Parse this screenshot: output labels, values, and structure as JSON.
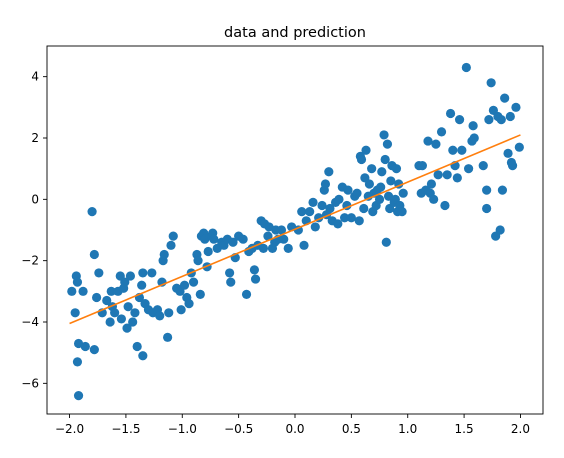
{
  "chart_data": {
    "type": "scatter",
    "title": "data and prediction",
    "xlabel": "",
    "ylabel": "",
    "xlim": [
      -2.2,
      2.2
    ],
    "ylim": [
      -7,
      5
    ],
    "x_ticks": [
      -2.0,
      -1.5,
      -1.0,
      -0.5,
      0.0,
      0.5,
      1.0,
      1.5,
      2.0
    ],
    "x_tick_labels": [
      "−2.0",
      "−1.5",
      "−1.0",
      "−0.5",
      "0.0",
      "0.5",
      "1.0",
      "1.5",
      "2.0"
    ],
    "y_ticks": [
      -6,
      -4,
      -2,
      0,
      2,
      4
    ],
    "y_tick_labels": [
      "−6",
      "−4",
      "−2",
      "0",
      "2",
      "4"
    ],
    "grid": false,
    "colors": {
      "points": "#1f77b4",
      "line": "#ff7f0e"
    },
    "series": [
      {
        "kind": "scatter",
        "points": [
          [
            -1.98,
            -3.0
          ],
          [
            -1.95,
            -3.7
          ],
          [
            -1.94,
            -2.5
          ],
          [
            -1.93,
            -2.7
          ],
          [
            -1.93,
            -5.3
          ],
          [
            -1.92,
            -4.7
          ],
          [
            -1.92,
            -6.4
          ],
          [
            -1.88,
            -3.0
          ],
          [
            -1.86,
            -4.8
          ],
          [
            -1.8,
            -0.4
          ],
          [
            -1.78,
            -1.8
          ],
          [
            -1.78,
            -4.9
          ],
          [
            -1.76,
            -3.2
          ],
          [
            -1.74,
            -2.4
          ],
          [
            -1.71,
            -3.7
          ],
          [
            -1.67,
            -3.3
          ],
          [
            -1.64,
            -4.0
          ],
          [
            -1.63,
            -3.0
          ],
          [
            -1.62,
            -3.5
          ],
          [
            -1.6,
            -3.7
          ],
          [
            -1.57,
            -3.0
          ],
          [
            -1.55,
            -2.5
          ],
          [
            -1.54,
            -3.9
          ],
          [
            -1.52,
            -2.9
          ],
          [
            -1.51,
            -2.7
          ],
          [
            -1.49,
            -4.2
          ],
          [
            -1.48,
            -3.5
          ],
          [
            -1.46,
            -2.5
          ],
          [
            -1.44,
            -4.0
          ],
          [
            -1.42,
            -3.7
          ],
          [
            -1.4,
            -4.8
          ],
          [
            -1.38,
            -3.2
          ],
          [
            -1.36,
            -2.8
          ],
          [
            -1.35,
            -5.1
          ],
          [
            -1.35,
            -2.4
          ],
          [
            -1.33,
            -3.4
          ],
          [
            -1.3,
            -3.6
          ],
          [
            -1.27,
            -2.4
          ],
          [
            -1.26,
            -3.7
          ],
          [
            -1.22,
            -3.6
          ],
          [
            -1.2,
            -3.8
          ],
          [
            -1.18,
            -2.7
          ],
          [
            -1.17,
            -2.0
          ],
          [
            -1.16,
            -1.8
          ],
          [
            -1.13,
            -4.5
          ],
          [
            -1.12,
            -3.7
          ],
          [
            -1.1,
            -1.5
          ],
          [
            -1.08,
            -1.2
          ],
          [
            -1.05,
            -2.9
          ],
          [
            -1.02,
            -3.0
          ],
          [
            -1.01,
            -3.6
          ],
          [
            -0.98,
            -2.8
          ],
          [
            -0.96,
            -3.2
          ],
          [
            -0.94,
            -3.4
          ],
          [
            -0.92,
            -2.4
          ],
          [
            -0.9,
            -2.7
          ],
          [
            -0.87,
            -1.8
          ],
          [
            -0.86,
            -2.0
          ],
          [
            -0.84,
            -3.1
          ],
          [
            -0.83,
            -1.2
          ],
          [
            -0.81,
            -1.1
          ],
          [
            -0.8,
            -1.3
          ],
          [
            -0.78,
            -2.2
          ],
          [
            -0.77,
            -1.7
          ],
          [
            -0.74,
            -1.2
          ],
          [
            -0.73,
            -1.1
          ],
          [
            -0.72,
            -1.3
          ],
          [
            -0.69,
            -1.6
          ],
          [
            -0.65,
            -1.4
          ],
          [
            -0.63,
            -1.5
          ],
          [
            -0.6,
            -1.3
          ],
          [
            -0.58,
            -2.4
          ],
          [
            -0.57,
            -2.7
          ],
          [
            -0.55,
            -1.4
          ],
          [
            -0.53,
            -1.9
          ],
          [
            -0.5,
            -1.2
          ],
          [
            -0.46,
            -1.3
          ],
          [
            -0.43,
            -3.1
          ],
          [
            -0.41,
            -1.7
          ],
          [
            -0.38,
            -1.6
          ],
          [
            -0.36,
            -2.3
          ],
          [
            -0.35,
            -2.6
          ],
          [
            -0.33,
            -1.5
          ],
          [
            -0.3,
            -0.7
          ],
          [
            -0.28,
            -1.6
          ],
          [
            -0.27,
            -0.8
          ],
          [
            -0.24,
            -1.2
          ],
          [
            -0.23,
            -0.9
          ],
          [
            -0.2,
            -1.6
          ],
          [
            -0.18,
            -1.4
          ],
          [
            -0.17,
            -1.0
          ],
          [
            -0.15,
            -1.3
          ],
          [
            -0.12,
            -1.0
          ],
          [
            -0.1,
            -1.3
          ],
          [
            -0.06,
            -1.6
          ],
          [
            -0.03,
            -0.9
          ],
          [
            0.03,
            -1.0
          ],
          [
            0.06,
            -0.4
          ],
          [
            0.08,
            -1.5
          ],
          [
            0.1,
            -0.7
          ],
          [
            0.13,
            -0.4
          ],
          [
            0.16,
            -0.1
          ],
          [
            0.18,
            -0.9
          ],
          [
            0.21,
            -0.6
          ],
          [
            0.24,
            -0.2
          ],
          [
            0.26,
            0.3
          ],
          [
            0.27,
            0.5
          ],
          [
            0.28,
            -0.5
          ],
          [
            0.3,
            0.9
          ],
          [
            0.31,
            -0.3
          ],
          [
            0.33,
            -0.7
          ],
          [
            0.36,
            -0.1
          ],
          [
            0.38,
            -0.8
          ],
          [
            0.39,
            0.0
          ],
          [
            0.42,
            0.4
          ],
          [
            0.44,
            -0.6
          ],
          [
            0.46,
            -0.2
          ],
          [
            0.47,
            0.3
          ],
          [
            0.5,
            -0.6
          ],
          [
            0.53,
            0.1
          ],
          [
            0.55,
            0.2
          ],
          [
            0.57,
            -0.7
          ],
          [
            0.58,
            1.4
          ],
          [
            0.59,
            1.3
          ],
          [
            0.61,
            -0.3
          ],
          [
            0.62,
            0.7
          ],
          [
            0.63,
            1.6
          ],
          [
            0.65,
            0.1
          ],
          [
            0.66,
            0.5
          ],
          [
            0.68,
            1.0
          ],
          [
            0.69,
            -0.4
          ],
          [
            0.7,
            0.2
          ],
          [
            0.72,
            -0.2
          ],
          [
            0.73,
            0.3
          ],
          [
            0.75,
            0.0
          ],
          [
            0.76,
            0.4
          ],
          [
            0.77,
            0.9
          ],
          [
            0.79,
            2.1
          ],
          [
            0.8,
            1.3
          ],
          [
            0.81,
            -1.4
          ],
          [
            0.82,
            1.8
          ],
          [
            0.83,
            0.1
          ],
          [
            0.84,
            -0.3
          ],
          [
            0.85,
            0.6
          ],
          [
            0.86,
            1.1
          ],
          [
            0.88,
            -0.1
          ],
          [
            0.89,
            0.0
          ],
          [
            0.9,
            1.0
          ],
          [
            0.91,
            -0.4
          ],
          [
            0.92,
            0.5
          ],
          [
            0.93,
            -0.2
          ],
          [
            0.95,
            -0.4
          ],
          [
            0.96,
            0.2
          ],
          [
            1.1,
            1.1
          ],
          [
            1.12,
            0.2
          ],
          [
            1.13,
            1.1
          ],
          [
            1.16,
            0.3
          ],
          [
            1.18,
            1.9
          ],
          [
            1.2,
            0.2
          ],
          [
            1.21,
            0.5
          ],
          [
            1.23,
            0.0
          ],
          [
            1.25,
            1.8
          ],
          [
            1.27,
            0.8
          ],
          [
            1.3,
            2.2
          ],
          [
            1.33,
            -0.2
          ],
          [
            1.35,
            0.8
          ],
          [
            1.38,
            2.8
          ],
          [
            1.4,
            1.6
          ],
          [
            1.42,
            1.1
          ],
          [
            1.44,
            0.7
          ],
          [
            1.46,
            2.6
          ],
          [
            1.48,
            1.6
          ],
          [
            1.52,
            4.3
          ],
          [
            1.54,
            1.0
          ],
          [
            1.57,
            1.9
          ],
          [
            1.58,
            2.4
          ],
          [
            1.59,
            2.0
          ],
          [
            1.67,
            1.1
          ],
          [
            1.7,
            0.3
          ],
          [
            1.7,
            -0.3
          ],
          [
            1.72,
            2.6
          ],
          [
            1.74,
            3.8
          ],
          [
            1.76,
            2.9
          ],
          [
            1.78,
            -1.2
          ],
          [
            1.8,
            2.7
          ],
          [
            1.82,
            -1.0
          ],
          [
            1.83,
            2.6
          ],
          [
            1.84,
            0.3
          ],
          [
            1.86,
            3.3
          ],
          [
            1.89,
            1.5
          ],
          [
            1.91,
            2.7
          ],
          [
            1.92,
            1.2
          ],
          [
            1.93,
            1.1
          ],
          [
            1.96,
            3.0
          ],
          [
            1.99,
            1.7
          ]
        ]
      },
      {
        "kind": "line",
        "x": [
          -2.0,
          2.0
        ],
        "y": [
          -4.05,
          2.1
        ]
      }
    ]
  }
}
